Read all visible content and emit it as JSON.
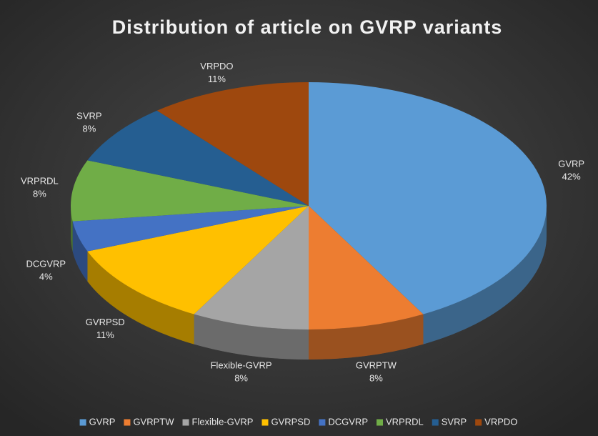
{
  "chart_data": {
    "type": "pie",
    "title": "Distribution of article on GVRP variants",
    "categories": [
      "GVRP",
      "GVRPTW",
      "Flexible-GVRP",
      "GVRPSD",
      "DCGVRP",
      "VRPRDL",
      "SVRP",
      "VRPDO"
    ],
    "values": [
      42,
      8,
      8,
      11,
      4,
      8,
      8,
      11
    ],
    "value_labels": [
      "42%",
      "8%",
      "8%",
      "11%",
      "4%",
      "8%",
      "8%",
      "11%"
    ],
    "colors": [
      "#5b9bd5",
      "#ed7d31",
      "#a5a5a5",
      "#ffc000",
      "#4472c4",
      "#70ad47",
      "#255e91",
      "#9e480e"
    ],
    "legend": "bottom"
  }
}
